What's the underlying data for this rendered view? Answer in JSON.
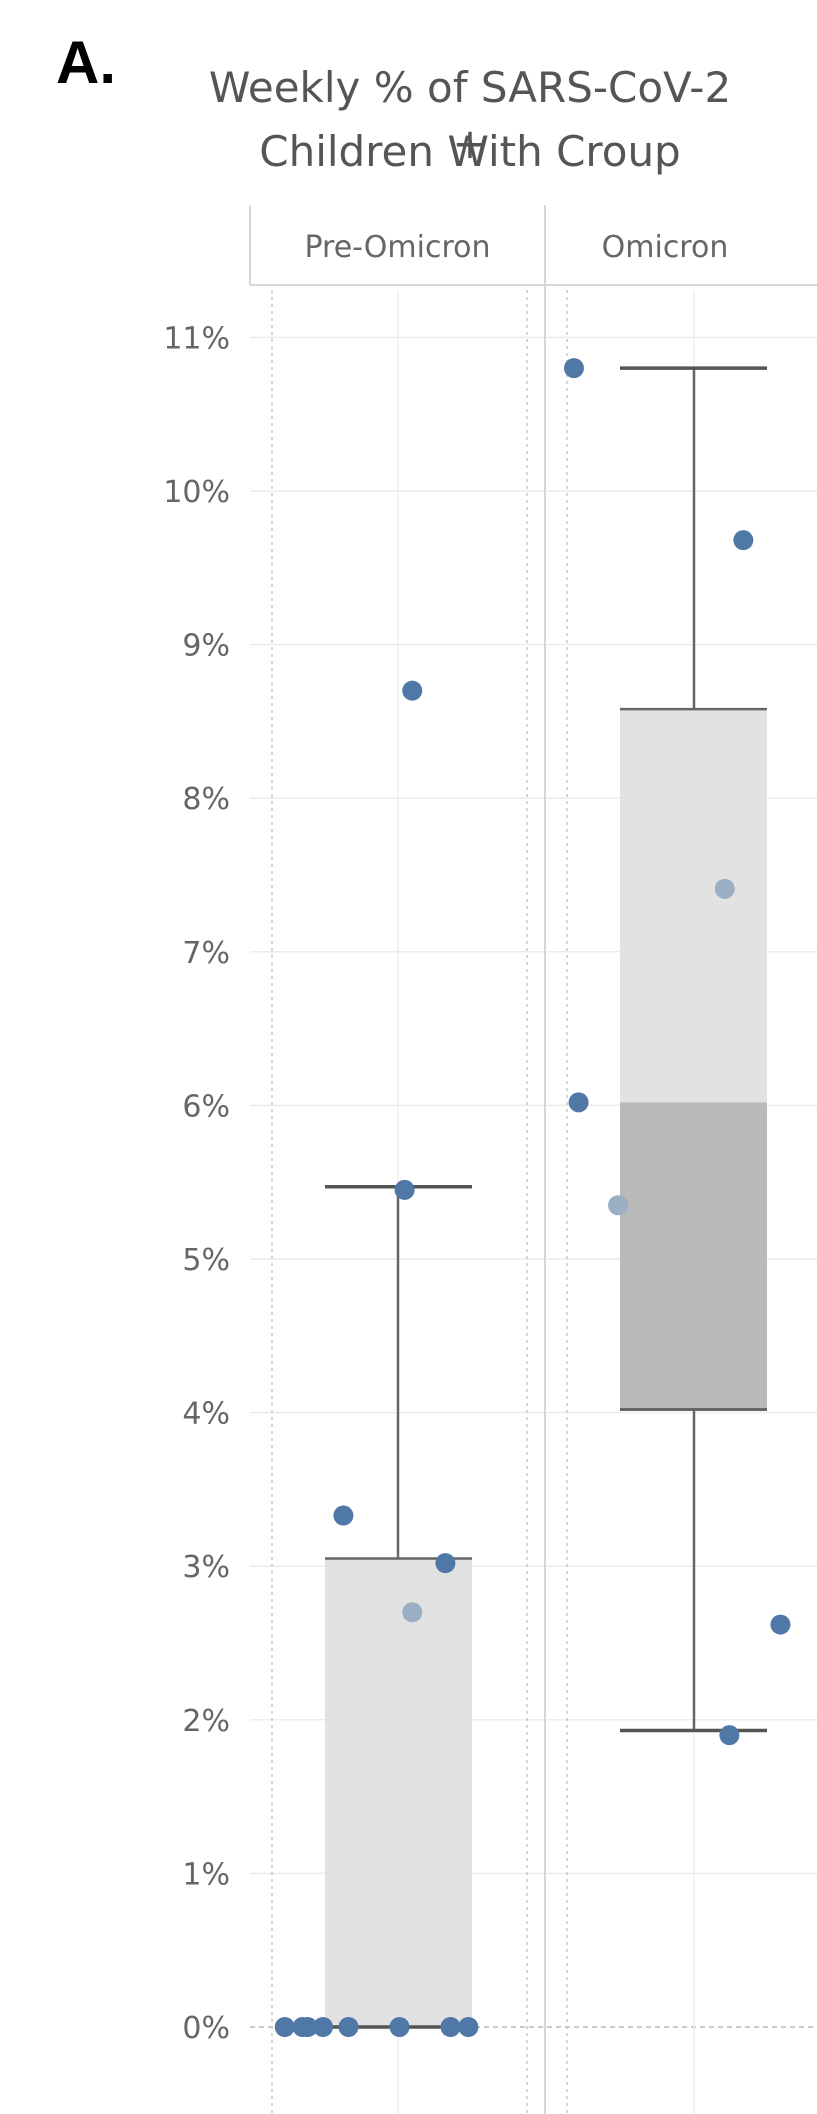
{
  "panel_label": "A.",
  "chart_data": {
    "type": "box",
    "title_lines": [
      "Weekly % of SARS-CoV-2 +",
      "Children With Croup"
    ],
    "yticks": [
      "0%",
      "1%",
      "2%",
      "3%",
      "4%",
      "5%",
      "6%",
      "7%",
      "8%",
      "9%",
      "10%",
      "11%"
    ],
    "ylim": [
      0,
      11
    ],
    "grid": true,
    "groups": [
      {
        "name": "Pre-Omicron",
        "box": {
          "min": 0,
          "q1": 0,
          "median": 0,
          "q3": 3.05,
          "max": 5.47
        },
        "points": [
          {
            "y": 0.0,
            "lane": 0.05
          },
          {
            "y": 0.0,
            "lane": 0.12
          },
          {
            "y": 0.0,
            "lane": 0.14
          },
          {
            "y": 0.0,
            "lane": 0.2
          },
          {
            "y": 0.0,
            "lane": 0.3
          },
          {
            "y": 0.0,
            "lane": 0.5
          },
          {
            "y": 0.0,
            "lane": 0.7
          },
          {
            "y": 0.0,
            "lane": 0.77
          },
          {
            "y": 2.7,
            "lane": 0.55,
            "faded": true
          },
          {
            "y": 3.02,
            "lane": 0.68
          },
          {
            "y": 3.33,
            "lane": 0.28
          },
          {
            "y": 5.45,
            "lane": 0.52
          },
          {
            "y": 8.7,
            "lane": 0.55
          }
        ]
      },
      {
        "name": "Omicron",
        "box": {
          "min": 1.93,
          "q1": 4.02,
          "median": 6.02,
          "q3": 8.58,
          "max": 10.8
        },
        "points": [
          {
            "y": 1.9,
            "lane": 0.7
          },
          {
            "y": 2.62,
            "lane": 0.92
          },
          {
            "y": 5.35,
            "lane": 0.22,
            "faded": true
          },
          {
            "y": 6.02,
            "lane": 0.05
          },
          {
            "y": 7.41,
            "lane": 0.68,
            "faded": true
          },
          {
            "y": 9.68,
            "lane": 0.76
          },
          {
            "y": 10.8,
            "lane": 0.03
          }
        ]
      }
    ]
  }
}
